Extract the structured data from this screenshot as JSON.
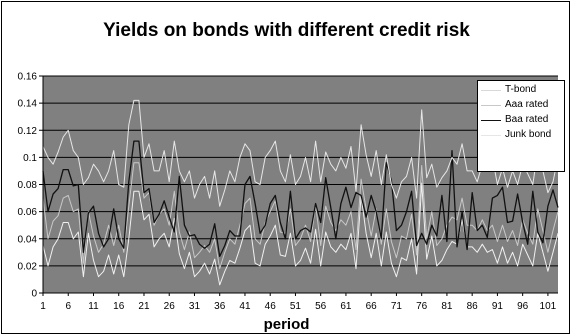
{
  "chart_data": {
    "type": "line",
    "title": "Yields on bonds with different credit risk",
    "xlabel": "period",
    "ylabel": "",
    "ylim": [
      0,
      0.16
    ],
    "xlim": [
      1,
      103
    ],
    "yticks": [
      "0",
      "0.02",
      "0.04",
      "0.06",
      "0.08",
      "0.1",
      "0.12",
      "0.14",
      "0.16"
    ],
    "xtick_labels": [
      "1",
      "6",
      "11",
      "16",
      "21",
      "26",
      "31",
      "36",
      "41",
      "46",
      "51",
      "56",
      "61",
      "66",
      "71",
      "76",
      "81",
      "86",
      "91",
      "96",
      "101"
    ],
    "grid": "horizontal",
    "background": "#808080",
    "legend_position": "top-right",
    "series": [
      {
        "name": "T-bond",
        "color": "#f0f0f0",
        "values": [
          0.035,
          0.02,
          0.034,
          0.04,
          0.052,
          0.052,
          0.04,
          0.045,
          0.012,
          0.044,
          0.024,
          0.012,
          0.016,
          0.028,
          0.014,
          0.028,
          0.012,
          0.04,
          0.075,
          0.075,
          0.054,
          0.058,
          0.034,
          0.04,
          0.044,
          0.034,
          0.055,
          0.029,
          0.018,
          0.03,
          0.012,
          0.016,
          0.022,
          0.014,
          0.025,
          0.006,
          0.016,
          0.024,
          0.022,
          0.033,
          0.046,
          0.05,
          0.022,
          0.02,
          0.036,
          0.042,
          0.05,
          0.028,
          0.027,
          0.044,
          0.02,
          0.024,
          0.033,
          0.022,
          0.047,
          0.02,
          0.045,
          0.034,
          0.03,
          0.036,
          0.032,
          0.044,
          0.018,
          0.072,
          0.044,
          0.026,
          0.044,
          0.02,
          0.045,
          0.022,
          0.012,
          0.026,
          0.024,
          0.04,
          0.014,
          0.081,
          0.025,
          0.042,
          0.02,
          0.024,
          0.032,
          0.038,
          0.036,
          0.054,
          0.034,
          0.034,
          0.03,
          0.036,
          0.03,
          0.032,
          0.022,
          0.034,
          0.022,
          0.03,
          0.02,
          0.036,
          0.028,
          0.02,
          0.044,
          0.03,
          0.016,
          0.03,
          0.044
        ]
      },
      {
        "name": "Aaa rated",
        "color": "#c8c8c8",
        "values": [
          0.07,
          0.04,
          0.053,
          0.057,
          0.07,
          0.072,
          0.06,
          0.062,
          0.022,
          0.06,
          0.042,
          0.03,
          0.036,
          0.05,
          0.035,
          0.05,
          0.03,
          0.064,
          0.096,
          0.096,
          0.07,
          0.074,
          0.05,
          0.058,
          0.062,
          0.05,
          0.075,
          0.045,
          0.032,
          0.045,
          0.026,
          0.03,
          0.035,
          0.03,
          0.04,
          0.018,
          0.03,
          0.04,
          0.036,
          0.05,
          0.066,
          0.07,
          0.04,
          0.036,
          0.052,
          0.06,
          0.068,
          0.045,
          0.044,
          0.062,
          0.035,
          0.04,
          0.05,
          0.038,
          0.065,
          0.035,
          0.064,
          0.052,
          0.046,
          0.054,
          0.05,
          0.06,
          0.032,
          0.084,
          0.062,
          0.042,
          0.062,
          0.036,
          0.062,
          0.038,
          0.026,
          0.042,
          0.04,
          0.058,
          0.028,
          0.094,
          0.04,
          0.06,
          0.035,
          0.04,
          0.05,
          0.056,
          0.054,
          0.07,
          0.05,
          0.05,
          0.046,
          0.054,
          0.046,
          0.05,
          0.038,
          0.05,
          0.038,
          0.046,
          0.035,
          0.054,
          0.044,
          0.036,
          0.062,
          0.046,
          0.03,
          0.046,
          0.06
        ]
      },
      {
        "name": "Baa rated",
        "color": "#111111",
        "values": [
          0.09,
          0.06,
          0.073,
          0.077,
          0.091,
          0.091,
          0.079,
          0.08,
          0.03,
          0.059,
          0.064,
          0.044,
          0.034,
          0.04,
          0.062,
          0.04,
          0.033,
          0.082,
          0.112,
          0.112,
          0.074,
          0.077,
          0.052,
          0.058,
          0.068,
          0.056,
          0.045,
          0.086,
          0.05,
          0.042,
          0.043,
          0.036,
          0.033,
          0.036,
          0.051,
          0.027,
          0.035,
          0.046,
          0.042,
          0.042,
          0.08,
          0.086,
          0.066,
          0.044,
          0.05,
          0.066,
          0.072,
          0.052,
          0.04,
          0.075,
          0.04,
          0.046,
          0.048,
          0.045,
          0.066,
          0.052,
          0.085,
          0.063,
          0.04,
          0.066,
          0.078,
          0.063,
          0.074,
          0.072,
          0.056,
          0.072,
          0.06,
          0.04,
          0.096,
          0.083,
          0.046,
          0.05,
          0.06,
          0.075,
          0.035,
          0.044,
          0.036,
          0.05,
          0.042,
          0.072,
          0.038,
          0.105,
          0.034,
          0.06,
          0.032,
          0.074,
          0.046,
          0.05,
          0.041,
          0.07,
          0.072,
          0.078,
          0.052,
          0.053,
          0.073,
          0.052,
          0.036,
          0.075,
          0.045,
          0.037,
          0.064,
          0.076,
          0.063
        ]
      },
      {
        "name": "Junk bond",
        "color": "#e6e6e6",
        "values": [
          0.108,
          0.1,
          0.095,
          0.104,
          0.115,
          0.12,
          0.105,
          0.1,
          0.08,
          0.085,
          0.095,
          0.09,
          0.082,
          0.09,
          0.105,
          0.08,
          0.078,
          0.124,
          0.142,
          0.142,
          0.1,
          0.11,
          0.09,
          0.09,
          0.105,
          0.082,
          0.112,
          0.09,
          0.082,
          0.09,
          0.07,
          0.08,
          0.086,
          0.07,
          0.09,
          0.064,
          0.076,
          0.09,
          0.082,
          0.1,
          0.11,
          0.105,
          0.082,
          0.08,
          0.1,
          0.105,
          0.112,
          0.09,
          0.082,
          0.102,
          0.08,
          0.086,
          0.1,
          0.082,
          0.112,
          0.082,
          0.104,
          0.095,
          0.09,
          0.1,
          0.092,
          0.108,
          0.075,
          0.124,
          0.102,
          0.086,
          0.105,
          0.08,
          0.102,
          0.08,
          0.07,
          0.082,
          0.086,
          0.1,
          0.07,
          0.135,
          0.085,
          0.095,
          0.078,
          0.085,
          0.09,
          0.1,
          0.095,
          0.11,
          0.09,
          0.09,
          0.082,
          0.095,
          0.09,
          0.1,
          0.08,
          0.092,
          0.078,
          0.09,
          0.08,
          0.095,
          0.088,
          0.08,
          0.105,
          0.09,
          0.074,
          0.082,
          0.1
        ]
      }
    ]
  }
}
